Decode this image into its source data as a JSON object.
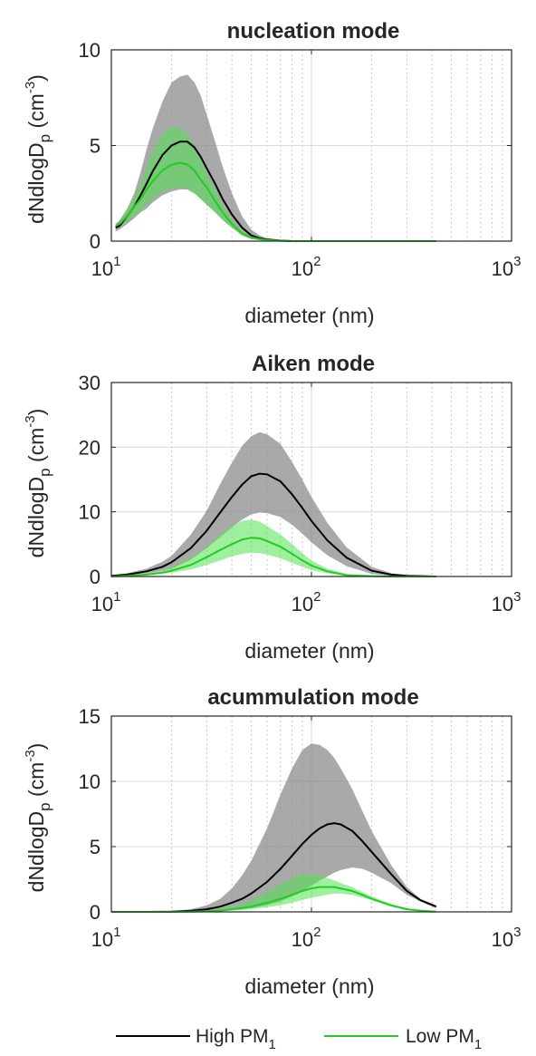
{
  "chart_data": [
    {
      "type": "line",
      "title": "nucleation mode",
      "xlabel": "diameter (nm)",
      "ylabel": "dNdlogD",
      "ylabel_sub": "p",
      "ylabel_units": "(cm",
      "ylabel_sup": "-3",
      "ylabel_close": ")",
      "xscale": "log",
      "xlim": [
        10,
        1000
      ],
      "ylim": [
        0,
        10
      ],
      "yticks": [
        "0",
        "5",
        "10"
      ],
      "xticks": [
        {
          "base": "10",
          "exp": "1"
        },
        {
          "base": "10",
          "exp": "2"
        },
        {
          "base": "10",
          "exp": "3"
        }
      ],
      "grid": true,
      "x": [
        10.5,
        11,
        12,
        13,
        14,
        15,
        16,
        18,
        20,
        22,
        24,
        26,
        28,
        30,
        33,
        36,
        40,
        45,
        50,
        55,
        60,
        70,
        80,
        100,
        150,
        200,
        300,
        420
      ],
      "series": [
        {
          "name": "High PM1",
          "color": "#000000",
          "band_color": "#8c8c8c",
          "values": [
            0.7,
            0.8,
            1.3,
            1.8,
            2.4,
            3.0,
            3.6,
            4.5,
            5.0,
            5.2,
            5.2,
            4.9,
            4.4,
            3.8,
            3.0,
            2.2,
            1.4,
            0.7,
            0.3,
            0.15,
            0.08,
            0.03,
            0.0,
            0.0,
            0.0,
            0.0,
            0.0,
            0.0
          ],
          "upper": [
            0.9,
            1.1,
            1.7,
            2.5,
            3.6,
            4.8,
            5.8,
            7.3,
            8.3,
            8.6,
            8.7,
            8.3,
            7.6,
            6.6,
            5.2,
            3.9,
            2.5,
            1.3,
            0.6,
            0.3,
            0.15,
            0.05,
            0.0,
            0.0,
            0.0,
            0.0,
            0.0,
            0.0
          ],
          "lower": [
            0.5,
            0.6,
            0.9,
            1.2,
            1.5,
            1.7,
            2.0,
            2.4,
            2.6,
            2.7,
            2.7,
            2.5,
            2.2,
            1.9,
            1.5,
            1.1,
            0.7,
            0.3,
            0.1,
            0.05,
            0.0,
            0.0,
            0.0,
            0.0,
            0.0,
            0.0,
            0.0,
            0.0
          ]
        },
        {
          "name": "Low PM1",
          "color": "#22cc22",
          "band_color": "#4ee24e",
          "values": [
            0.8,
            0.9,
            1.3,
            1.8,
            2.2,
            2.7,
            3.1,
            3.7,
            4.0,
            4.1,
            4.0,
            3.7,
            3.2,
            2.8,
            2.1,
            1.5,
            0.9,
            0.4,
            0.2,
            0.1,
            0.05,
            0.02,
            0.0,
            0.0,
            0.0,
            0.0,
            0.0,
            0.0
          ],
          "upper": [
            0.9,
            1.0,
            1.6,
            2.3,
            3.0,
            3.9,
            4.6,
            5.6,
            6.0,
            5.9,
            5.6,
            5.0,
            4.3,
            3.6,
            2.7,
            1.9,
            1.1,
            0.5,
            0.25,
            0.12,
            0.06,
            0.02,
            0.0,
            0.0,
            0.0,
            0.0,
            0.0,
            0.0
          ],
          "lower": [
            0.7,
            0.8,
            1.0,
            1.3,
            1.6,
            1.9,
            2.2,
            2.6,
            2.8,
            2.8,
            2.7,
            2.5,
            2.2,
            1.9,
            1.5,
            1.1,
            0.7,
            0.3,
            0.15,
            0.08,
            0.04,
            0.01,
            0.0,
            0.0,
            0.0,
            0.0,
            0.0,
            0.0
          ]
        }
      ]
    },
    {
      "type": "line",
      "title": "Aiken mode",
      "xlabel": "diameter (nm)",
      "ylabel": "dNdlogD",
      "ylabel_sub": "p",
      "ylabel_units": "(cm",
      "ylabel_sup": "-3",
      "ylabel_close": ")",
      "xscale": "log",
      "xlim": [
        10,
        1000
      ],
      "ylim": [
        0,
        30
      ],
      "yticks": [
        "0",
        "10",
        "20",
        "30"
      ],
      "xticks": [
        {
          "base": "10",
          "exp": "1"
        },
        {
          "base": "10",
          "exp": "2"
        },
        {
          "base": "10",
          "exp": "3"
        }
      ],
      "grid": true,
      "x": [
        10,
        12,
        15,
        18,
        20,
        25,
        30,
        35,
        40,
        45,
        50,
        55,
        60,
        70,
        80,
        90,
        100,
        120,
        150,
        200,
        250,
        300,
        420
      ],
      "series": [
        {
          "name": "High PM1",
          "color": "#000000",
          "band_color": "#8c8c8c",
          "values": [
            0.1,
            0.3,
            0.8,
            1.5,
            2.2,
            4.4,
            7.1,
            9.9,
            12.3,
            14.2,
            15.5,
            15.9,
            15.8,
            14.7,
            12.7,
            10.6,
            8.6,
            5.6,
            2.9,
            0.9,
            0.3,
            0.1,
            0.0
          ],
          "upper": [
            0.2,
            0.5,
            1.2,
            2.3,
            3.2,
            6.5,
            10.2,
            14.3,
            17.6,
            20.2,
            21.7,
            22.3,
            22.0,
            20.5,
            17.7,
            15.0,
            12.3,
            8.3,
            4.5,
            1.5,
            0.5,
            0.2,
            0.0
          ],
          "lower": [
            0.05,
            0.2,
            0.5,
            0.9,
            1.2,
            2.6,
            4.4,
            6.1,
            7.6,
            8.8,
            9.6,
            9.9,
            9.8,
            9.2,
            8.0,
            6.6,
            5.3,
            3.3,
            1.6,
            0.4,
            0.1,
            0.0,
            0.0
          ]
        },
        {
          "name": "Low PM1",
          "color": "#22cc22",
          "band_color": "#4ee24e",
          "values": [
            0.0,
            0.1,
            0.3,
            0.6,
            0.9,
            1.8,
            3.0,
            4.1,
            5.0,
            5.7,
            6.0,
            5.9,
            5.5,
            4.6,
            3.5,
            2.5,
            1.7,
            0.8,
            0.2,
            0.05,
            0.0,
            0.0,
            0.0
          ],
          "upper": [
            0.1,
            0.2,
            0.5,
            0.9,
            1.4,
            2.9,
            4.6,
            6.4,
            7.8,
            8.6,
            8.8,
            8.5,
            7.8,
            6.5,
            5.0,
            3.6,
            2.5,
            1.2,
            0.4,
            0.1,
            0.0,
            0.0,
            0.0
          ],
          "lower": [
            0.0,
            0.05,
            0.2,
            0.4,
            0.6,
            1.1,
            1.8,
            2.5,
            3.1,
            3.5,
            3.7,
            3.6,
            3.4,
            2.8,
            2.1,
            1.5,
            1.0,
            0.5,
            0.1,
            0.0,
            0.0,
            0.0,
            0.0
          ]
        }
      ]
    },
    {
      "type": "line",
      "title": "acummulation mode",
      "xlabel": "diameter (nm)",
      "ylabel": "dNdlogD",
      "ylabel_sub": "p",
      "ylabel_units": "(cm",
      "ylabel_sup": "-3",
      "ylabel_close": ")",
      "xscale": "log",
      "xlim": [
        10,
        1000
      ],
      "ylim": [
        0,
        15
      ],
      "yticks": [
        "0",
        "5",
        "10",
        "15"
      ],
      "xticks": [
        {
          "base": "10",
          "exp": "1"
        },
        {
          "base": "10",
          "exp": "2"
        },
        {
          "base": "10",
          "exp": "3"
        }
      ],
      "grid": true,
      "x": [
        10,
        15,
        20,
        25,
        30,
        35,
        40,
        45,
        50,
        60,
        70,
        80,
        90,
        100,
        110,
        120,
        130,
        140,
        160,
        180,
        200,
        250,
        300,
        350,
        420
      ],
      "series": [
        {
          "name": "High PM1",
          "color": "#000000",
          "band_color": "#8c8c8c",
          "values": [
            0.0,
            0.0,
            0.02,
            0.08,
            0.2,
            0.4,
            0.7,
            1.0,
            1.4,
            2.3,
            3.3,
            4.3,
            5.2,
            5.9,
            6.4,
            6.7,
            6.8,
            6.7,
            6.2,
            5.4,
            4.6,
            2.9,
            1.6,
            0.9,
            0.4
          ],
          "upper": [
            0.0,
            0.0,
            0.05,
            0.2,
            0.5,
            1.0,
            1.8,
            2.8,
            3.9,
            6.4,
            9.0,
            11.0,
            12.4,
            12.9,
            12.8,
            12.4,
            11.8,
            11.0,
            9.4,
            7.7,
            6.2,
            3.6,
            1.9,
            1.0,
            0.5
          ],
          "lower": [
            0.0,
            0.0,
            0.0,
            0.02,
            0.05,
            0.1,
            0.15,
            0.2,
            0.3,
            0.5,
            0.8,
            1.2,
            1.6,
            2.0,
            2.4,
            2.7,
            3.0,
            3.2,
            3.4,
            3.3,
            3.0,
            2.2,
            1.3,
            0.8,
            0.3
          ]
        },
        {
          "name": "Low PM1",
          "color": "#22cc22",
          "band_color": "#4ee24e",
          "values": [
            0.0,
            0.0,
            0.0,
            0.02,
            0.05,
            0.1,
            0.2,
            0.3,
            0.4,
            0.7,
            1.0,
            1.3,
            1.6,
            1.8,
            1.9,
            1.9,
            1.9,
            1.8,
            1.6,
            1.3,
            1.0,
            0.5,
            0.2,
            0.1,
            0.02
          ],
          "upper": [
            0.0,
            0.0,
            0.0,
            0.05,
            0.1,
            0.25,
            0.4,
            0.6,
            0.9,
            1.5,
            2.1,
            2.6,
            2.9,
            2.9,
            2.8,
            2.6,
            2.4,
            2.2,
            1.9,
            1.5,
            1.2,
            0.6,
            0.3,
            0.1,
            0.03
          ],
          "lower": [
            0.0,
            0.0,
            0.0,
            0.0,
            0.02,
            0.05,
            0.1,
            0.15,
            0.2,
            0.35,
            0.5,
            0.7,
            0.9,
            1.1,
            1.2,
            1.3,
            1.4,
            1.4,
            1.3,
            1.1,
            0.9,
            0.4,
            0.15,
            0.05,
            0.01
          ]
        }
      ]
    }
  ],
  "legend": {
    "placement": "bottom",
    "items": [
      {
        "label": "High PM",
        "sub": "1",
        "color": "#000000"
      },
      {
        "label": "Low PM",
        "sub": "1",
        "color": "#22cc22"
      }
    ]
  }
}
